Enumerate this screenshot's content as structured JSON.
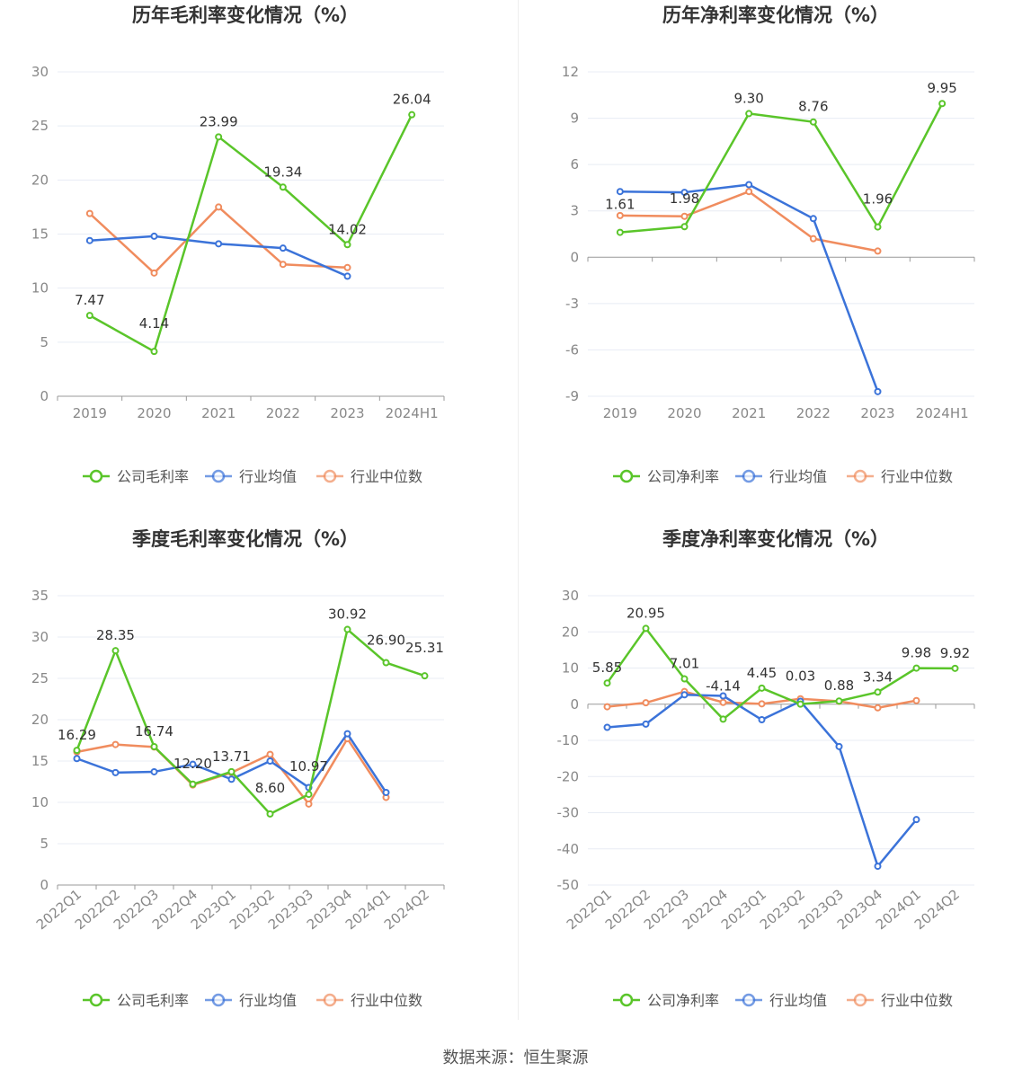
{
  "colors": {
    "company": "#5ac52a",
    "avg": "#3b73d9",
    "median": "#f08c5e",
    "grid": "#e8ecf4",
    "axis": "#999999"
  },
  "source": "数据来源：恒生聚源",
  "chart_data": [
    {
      "type": "line",
      "title": "历年毛利率变化情况（%）",
      "categories": [
        "2019",
        "2020",
        "2021",
        "2022",
        "2023",
        "2024H1"
      ],
      "ylim": [
        0,
        30
      ],
      "ytick_step": 5,
      "yticks": [
        "0",
        "5",
        "10",
        "15",
        "20",
        "25",
        "30"
      ],
      "legend": [
        "公司毛利率",
        "行业均值",
        "行业中位数"
      ],
      "series": [
        {
          "name": "公司毛利率",
          "values": [
            7.47,
            4.14,
            23.99,
            19.34,
            14.02,
            26.04
          ],
          "labels": [
            "7.47",
            "4.14",
            "23.99",
            "19.34",
            "14.02",
            "26.04"
          ]
        },
        {
          "name": "行业均值",
          "values": [
            14.4,
            14.8,
            14.1,
            13.7,
            11.1,
            null
          ]
        },
        {
          "name": "行业中位数",
          "values": [
            16.9,
            11.4,
            17.5,
            12.2,
            11.9,
            null
          ]
        }
      ]
    },
    {
      "type": "line",
      "title": "历年净利率变化情况（%）",
      "categories": [
        "2019",
        "2020",
        "2021",
        "2022",
        "2023",
        "2024H1"
      ],
      "ylim": [
        -9,
        12
      ],
      "ytick_step": 3,
      "yticks": [
        "-9",
        "-6",
        "-3",
        "0",
        "3",
        "6",
        "9",
        "12"
      ],
      "legend": [
        "公司净利率",
        "行业均值",
        "行业中位数"
      ],
      "series": [
        {
          "name": "公司净利率",
          "values": [
            1.61,
            1.98,
            9.3,
            8.76,
            1.96,
            9.95
          ],
          "labels": [
            "1.61",
            "1.98",
            "9.30",
            "8.76",
            "1.96",
            "9.95"
          ]
        },
        {
          "name": "行业均值",
          "values": [
            4.25,
            4.2,
            4.7,
            2.5,
            -8.7,
            null
          ]
        },
        {
          "name": "行业中位数",
          "values": [
            2.7,
            2.65,
            4.25,
            1.2,
            0.4,
            null
          ]
        }
      ]
    },
    {
      "type": "line",
      "title": "季度毛利率变化情况（%）",
      "categories": [
        "2022Q1",
        "2022Q2",
        "2022Q3",
        "2022Q4",
        "2023Q1",
        "2023Q2",
        "2023Q3",
        "2023Q4",
        "2024Q1",
        "2024Q2"
      ],
      "ylim": [
        0,
        35
      ],
      "ytick_step": 5,
      "yticks": [
        "0",
        "5",
        "10",
        "15",
        "20",
        "25",
        "30",
        "35"
      ],
      "legend": [
        "公司毛利率",
        "行业均值",
        "行业中位数"
      ],
      "series": [
        {
          "name": "公司毛利率",
          "values": [
            16.29,
            28.35,
            16.74,
            12.2,
            13.71,
            8.6,
            10.97,
            30.92,
            26.9,
            25.31
          ],
          "labels": [
            "16.29",
            "28.35",
            "16.74",
            "12.20",
            "13.71",
            "8.60",
            "10.97",
            "30.92",
            "26.90",
            "25.31"
          ]
        },
        {
          "name": "行业均值",
          "values": [
            15.3,
            13.6,
            13.7,
            14.6,
            12.8,
            15.0,
            11.8,
            18.3,
            11.2,
            null
          ]
        },
        {
          "name": "行业中位数",
          "values": [
            16.1,
            17.0,
            16.7,
            12.1,
            13.6,
            15.8,
            9.8,
            17.7,
            10.6,
            null
          ]
        }
      ]
    },
    {
      "type": "line",
      "title": "季度净利率变化情况（%）",
      "categories": [
        "2022Q1",
        "2022Q2",
        "2022Q3",
        "2022Q4",
        "2023Q1",
        "2023Q2",
        "2023Q3",
        "2023Q4",
        "2024Q1",
        "2024Q2"
      ],
      "ylim": [
        -50,
        30
      ],
      "ytick_step": 10,
      "yticks": [
        "-50",
        "-40",
        "-30",
        "-20",
        "-10",
        "0",
        "10",
        "20",
        "30"
      ],
      "legend": [
        "公司净利率",
        "行业均值",
        "行业中位数"
      ],
      "series": [
        {
          "name": "公司净利率",
          "values": [
            5.85,
            20.95,
            7.01,
            -4.14,
            4.45,
            0.03,
            0.88,
            3.34,
            9.98,
            9.92
          ],
          "labels": [
            "5.85",
            "20.95",
            "7.01",
            "-4.14",
            "4.45",
            "0.03",
            "0.88",
            "3.34",
            "9.98",
            "9.92"
          ]
        },
        {
          "name": "行业均值",
          "values": [
            -6.4,
            -5.5,
            2.6,
            2.3,
            -4.3,
            0.8,
            -11.7,
            -44.8,
            -31.9,
            null
          ]
        },
        {
          "name": "行业中位数",
          "values": [
            -0.7,
            0.4,
            3.5,
            0.5,
            0.1,
            1.5,
            0.8,
            -1.0,
            1.0,
            null
          ]
        }
      ]
    }
  ]
}
